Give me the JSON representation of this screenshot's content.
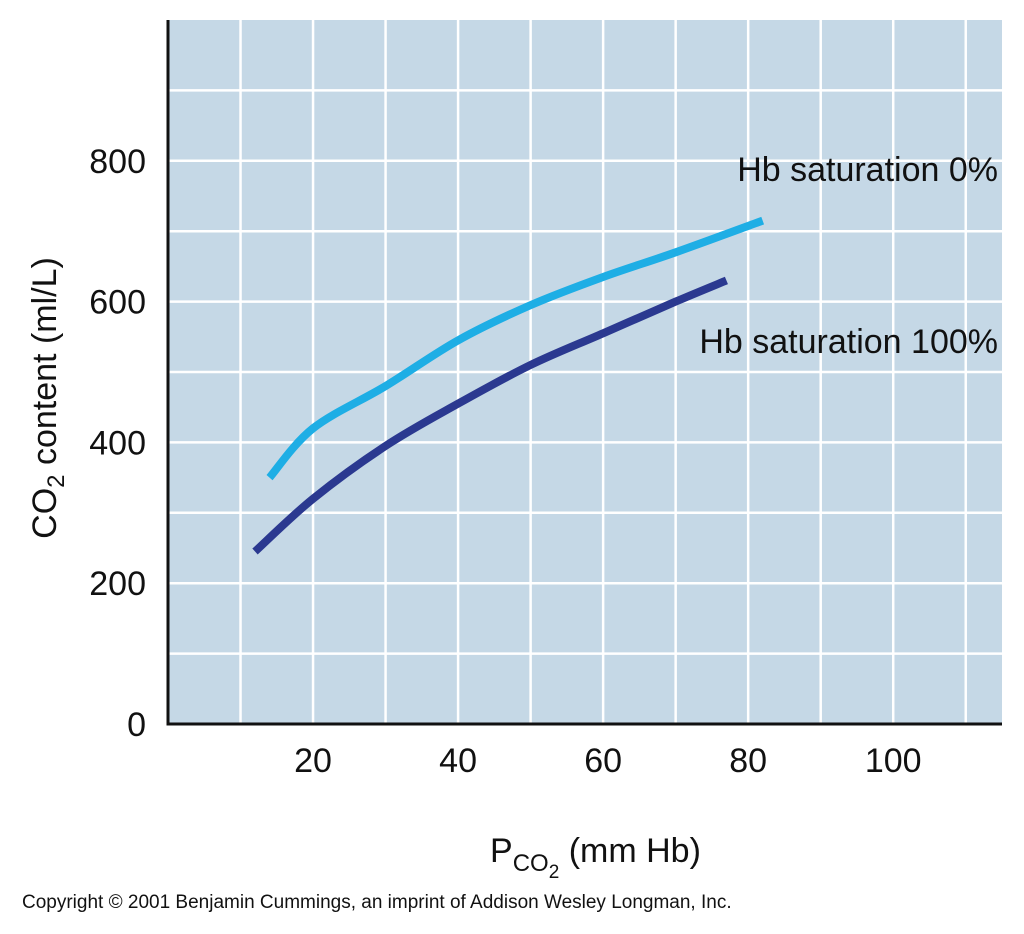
{
  "chart_data": {
    "type": "line",
    "title": "",
    "ylabel": {
      "main": "CO",
      "sub": "2",
      "rest": " content (ml/L)"
    },
    "xlabel": {
      "main": "P",
      "sub": "CO",
      "subsub": "2",
      "rest": " (mm Hb)"
    },
    "xlim": [
      0,
      115
    ],
    "ylim": [
      0,
      1000
    ],
    "x_ticks": [
      20,
      40,
      60,
      80,
      100
    ],
    "y_ticks": [
      0,
      200,
      400,
      600,
      800
    ],
    "grid": true,
    "series": [
      {
        "name": "Hb saturation 0%",
        "color": "#1eaee5",
        "points": [
          [
            14,
            350
          ],
          [
            20,
            420
          ],
          [
            30,
            480
          ],
          [
            40,
            545
          ],
          [
            50,
            595
          ],
          [
            60,
            635
          ],
          [
            70,
            670
          ],
          [
            82,
            715
          ]
        ]
      },
      {
        "name": "Hb saturation 100%",
        "color": "#2b3990",
        "points": [
          [
            12,
            245
          ],
          [
            20,
            320
          ],
          [
            30,
            395
          ],
          [
            40,
            455
          ],
          [
            50,
            510
          ],
          [
            60,
            555
          ],
          [
            70,
            600
          ],
          [
            77,
            630
          ]
        ]
      }
    ]
  },
  "copyright": "Copyright © 2001 Benjamin Cummings, an imprint of Addison Wesley Longman, Inc."
}
